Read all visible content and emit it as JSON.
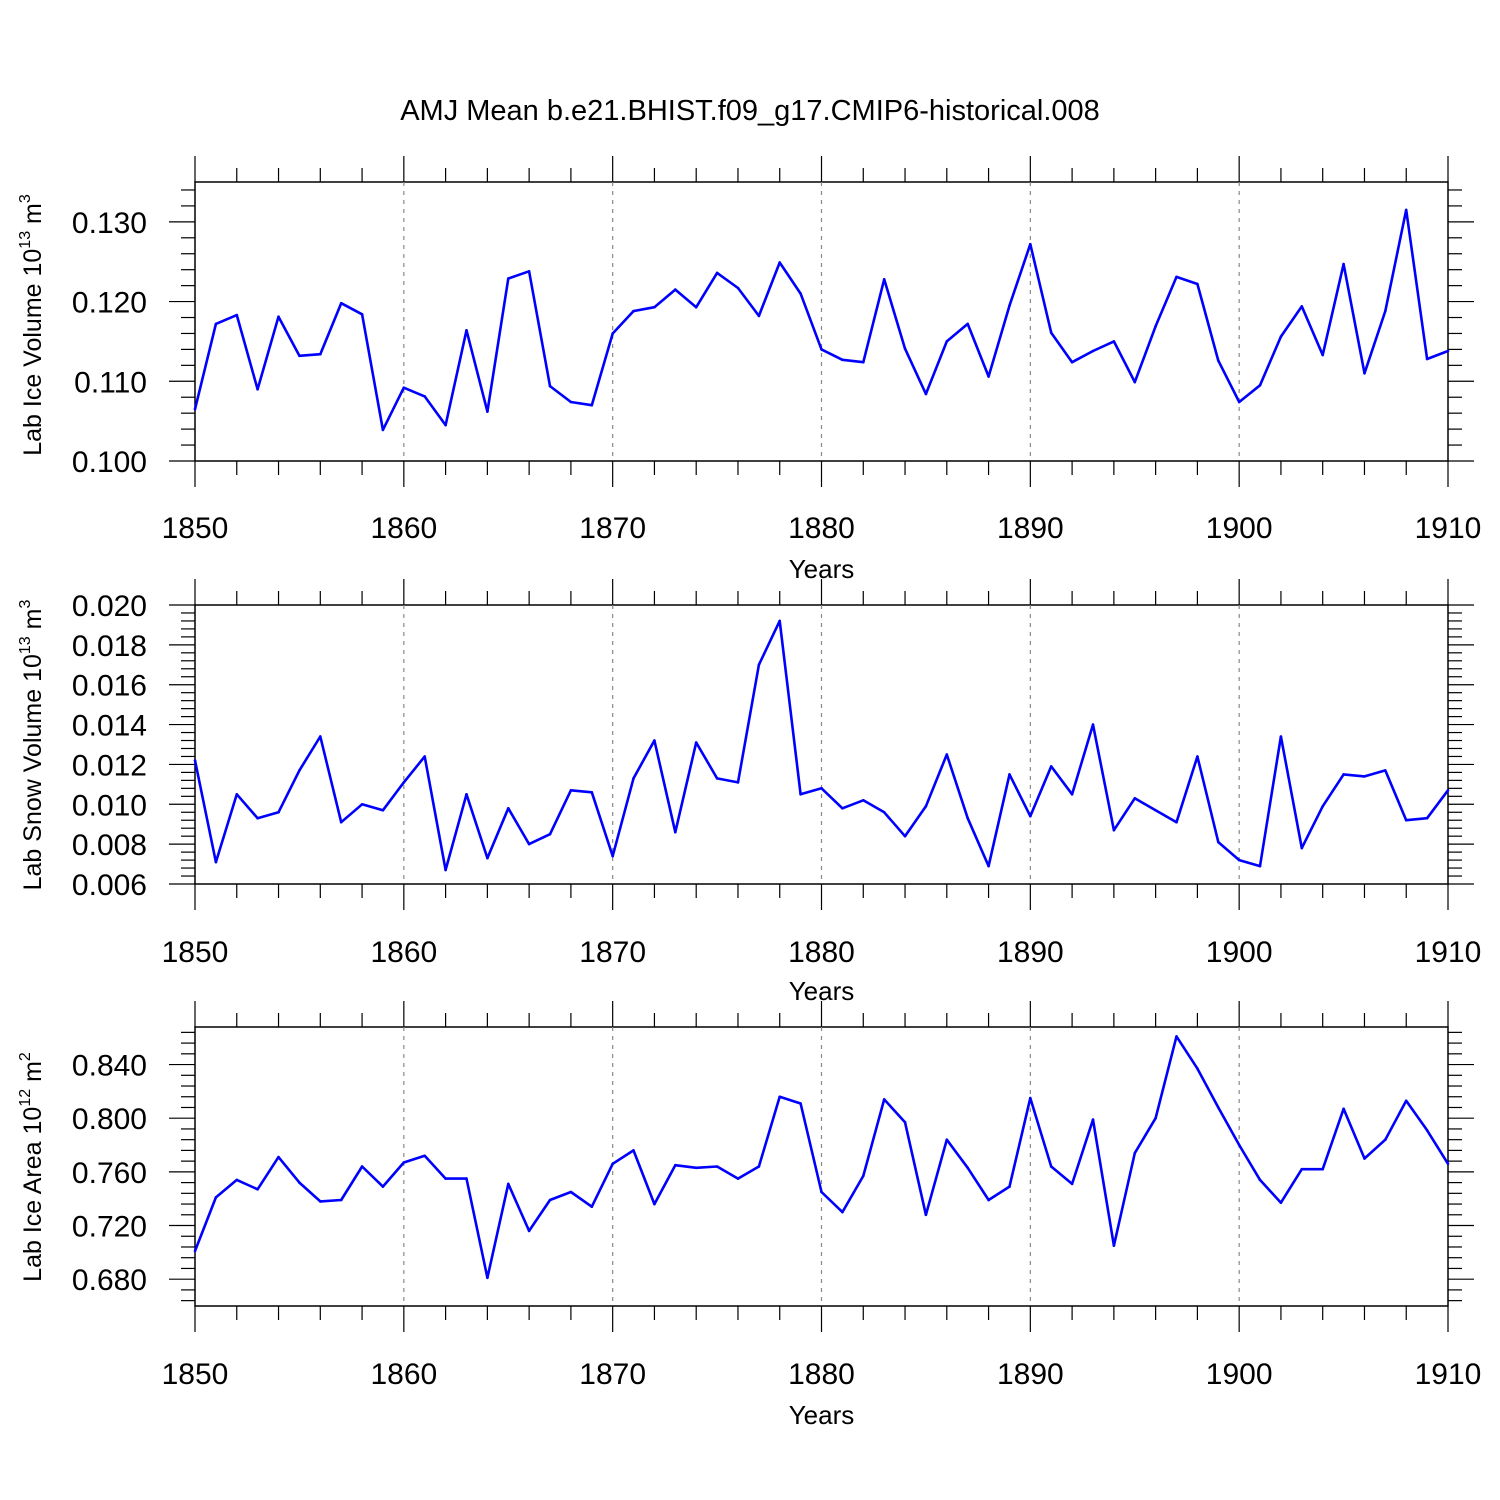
{
  "figure_title": "AMJ Mean b.e21.BHIST.f09_g17.CMIP6-historical.008",
  "colors": {
    "series": "#0000ff",
    "grid": "#888888",
    "axis": "#000000"
  },
  "chart_data": [
    {
      "type": "line",
      "title": "AMJ Mean b.e21.BHIST.f09_g17.CMIP6-historical.008",
      "xlabel": "Years",
      "ylabel": {
        "text": "Lab Ice Volume 10",
        "exp": "13",
        "unit": " m",
        "unit_exp": "3"
      },
      "xlim": [
        1850,
        1910
      ],
      "ylim": [
        0.1,
        0.135
      ],
      "xticks": [
        "1850",
        "1860",
        "1870",
        "1880",
        "1890",
        "1900",
        "1910"
      ],
      "yticks": [
        "0.100",
        "0.110",
        "0.120",
        "0.130"
      ],
      "ytick_values": [
        0.1,
        0.11,
        0.12,
        0.13
      ],
      "x_start": 1850,
      "values": [
        0.1065,
        0.1172,
        0.1183,
        0.109,
        0.1181,
        0.1132,
        0.1134,
        0.1198,
        0.1184,
        0.1039,
        0.1092,
        0.1081,
        0.1045,
        0.1164,
        0.1062,
        0.1229,
        0.1238,
        0.1094,
        0.1074,
        0.107,
        0.116,
        0.1188,
        0.1193,
        0.1215,
        0.1193,
        0.1236,
        0.1217,
        0.1182,
        0.1249,
        0.121,
        0.114,
        0.1127,
        0.1124,
        0.1228,
        0.1141,
        0.1084,
        0.115,
        0.1172,
        0.1106,
        0.1195,
        0.1272,
        0.1161,
        0.1124,
        0.1138,
        0.115,
        0.1099,
        0.1169,
        0.1231,
        0.1222,
        0.1126,
        0.1074,
        0.1095,
        0.1156,
        0.1194,
        0.1133,
        0.1247,
        0.111,
        0.1188,
        0.1315,
        0.1128,
        0.1138
      ]
    },
    {
      "type": "line",
      "xlabel": "Years",
      "ylabel": {
        "text": "Lab Snow Volume 10",
        "exp": "13",
        "unit": " m",
        "unit_exp": "3"
      },
      "xlim": [
        1850,
        1910
      ],
      "ylim": [
        0.006,
        0.02
      ],
      "xticks": [
        "1850",
        "1860",
        "1870",
        "1880",
        "1890",
        "1900",
        "1910"
      ],
      "yticks": [
        "0.006",
        "0.008",
        "0.010",
        "0.012",
        "0.014",
        "0.016",
        "0.018",
        "0.020"
      ],
      "ytick_values": [
        0.006,
        0.008,
        0.01,
        0.012,
        0.014,
        0.016,
        0.018,
        0.02
      ],
      "x_start": 1850,
      "values": [
        0.0122,
        0.0071,
        0.0105,
        0.0093,
        0.0096,
        0.0117,
        0.0134,
        0.0091,
        0.01,
        0.0097,
        0.0111,
        0.0124,
        0.0067,
        0.0105,
        0.0073,
        0.0098,
        0.008,
        0.0085,
        0.0107,
        0.0106,
        0.0074,
        0.0113,
        0.0132,
        0.0086,
        0.0131,
        0.0113,
        0.0111,
        0.017,
        0.0192,
        0.0105,
        0.0108,
        0.0098,
        0.0102,
        0.0096,
        0.0084,
        0.0099,
        0.0125,
        0.0093,
        0.0069,
        0.0115,
        0.0094,
        0.0119,
        0.0105,
        0.014,
        0.0087,
        0.0103,
        0.0097,
        0.0091,
        0.0124,
        0.0081,
        0.0072,
        0.0069,
        0.0134,
        0.0078,
        0.0099,
        0.0115,
        0.0114,
        0.0117,
        0.0092,
        0.0093,
        0.0107
      ]
    },
    {
      "type": "line",
      "xlabel": "Years",
      "ylabel": {
        "text": "Lab Ice Area 10",
        "exp": "12",
        "unit": " m",
        "unit_exp": "2"
      },
      "xlim": [
        1850,
        1910
      ],
      "ylim": [
        0.66,
        0.868
      ],
      "xticks": [
        "1850",
        "1860",
        "1870",
        "1880",
        "1890",
        "1900",
        "1910"
      ],
      "yticks": [
        "0.680",
        "0.720",
        "0.760",
        "0.800",
        "0.840"
      ],
      "ytick_values": [
        0.68,
        0.72,
        0.76,
        0.8,
        0.84
      ],
      "x_start": 1850,
      "values": [
        0.701,
        0.741,
        0.754,
        0.747,
        0.771,
        0.752,
        0.738,
        0.739,
        0.764,
        0.749,
        0.767,
        0.772,
        0.755,
        0.755,
        0.681,
        0.751,
        0.716,
        0.739,
        0.745,
        0.734,
        0.766,
        0.776,
        0.736,
        0.765,
        0.763,
        0.764,
        0.755,
        0.764,
        0.816,
        0.811,
        0.745,
        0.73,
        0.757,
        0.814,
        0.797,
        0.728,
        0.784,
        0.763,
        0.739,
        0.749,
        0.815,
        0.764,
        0.751,
        0.799,
        0.705,
        0.774,
        0.8,
        0.861,
        0.837,
        0.808,
        0.78,
        0.754,
        0.737,
        0.762,
        0.762,
        0.807,
        0.77,
        0.784,
        0.813,
        0.791,
        0.766
      ]
    }
  ]
}
